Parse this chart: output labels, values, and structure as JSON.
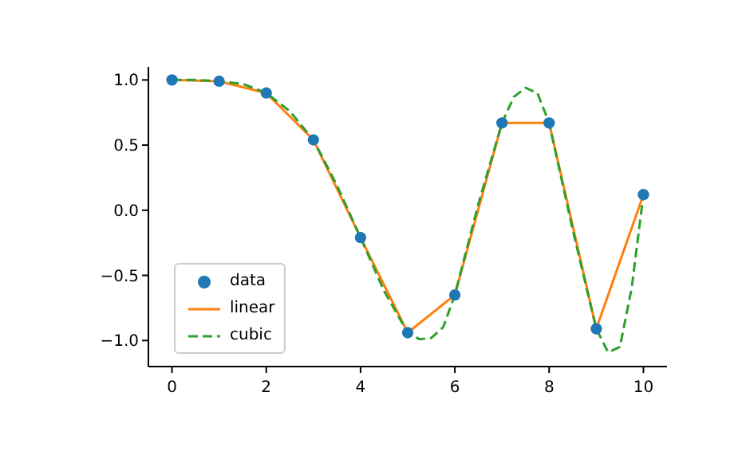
{
  "chart_data": {
    "type": "line",
    "xlim": [
      -0.5,
      10.5
    ],
    "ylim": [
      -1.2,
      1.1
    ],
    "xticks": [
      0,
      2,
      4,
      6,
      8,
      10
    ],
    "yticks": [
      {
        "value": -1,
        "label": "−1.0"
      },
      {
        "value": -0.5,
        "label": "−0.5"
      },
      {
        "value": 0,
        "label": "0.0"
      },
      {
        "value": 0.5,
        "label": "0.5"
      },
      {
        "value": 1,
        "label": "1.0"
      }
    ],
    "grid": false,
    "legend": "bottom left",
    "series": [
      {
        "name": "data",
        "type": "scatter",
        "marker": "circle",
        "color": "#1f77b4",
        "x": [
          0,
          1,
          2,
          3,
          4,
          5,
          6,
          7,
          8,
          9,
          10
        ],
        "values": [
          1.0,
          0.99,
          0.9,
          0.54,
          -0.21,
          -0.94,
          -0.65,
          0.67,
          0.67,
          -0.91,
          0.12
        ]
      },
      {
        "name": "linear",
        "type": "line",
        "line_style": "solid",
        "color": "#ff7f0e",
        "x": [
          0,
          1,
          2,
          3,
          4,
          5,
          6,
          7,
          8,
          9,
          10
        ],
        "values": [
          1.0,
          0.99,
          0.9,
          0.54,
          -0.21,
          -0.94,
          -0.65,
          0.67,
          0.67,
          -0.91,
          0.12
        ]
      },
      {
        "name": "cubic",
        "type": "line",
        "line_style": "dashed",
        "color": "#2ca02c",
        "x": [
          0,
          0.5,
          1,
          1.5,
          2,
          2.5,
          3,
          3.5,
          4,
          4.5,
          5,
          5.25,
          5.5,
          5.75,
          6,
          6.5,
          7,
          7.25,
          7.5,
          7.75,
          8,
          8.5,
          9,
          9.25,
          9.5,
          9.75,
          10
        ],
        "values": [
          1.0,
          1.0,
          0.99,
          0.97,
          0.9,
          0.76,
          0.54,
          0.19,
          -0.21,
          -0.62,
          -0.94,
          -0.99,
          -0.98,
          -0.9,
          -0.65,
          0.05,
          0.67,
          0.87,
          0.94,
          0.9,
          0.67,
          -0.15,
          -0.91,
          -1.09,
          -1.05,
          -0.6,
          0.12
        ]
      }
    ]
  }
}
